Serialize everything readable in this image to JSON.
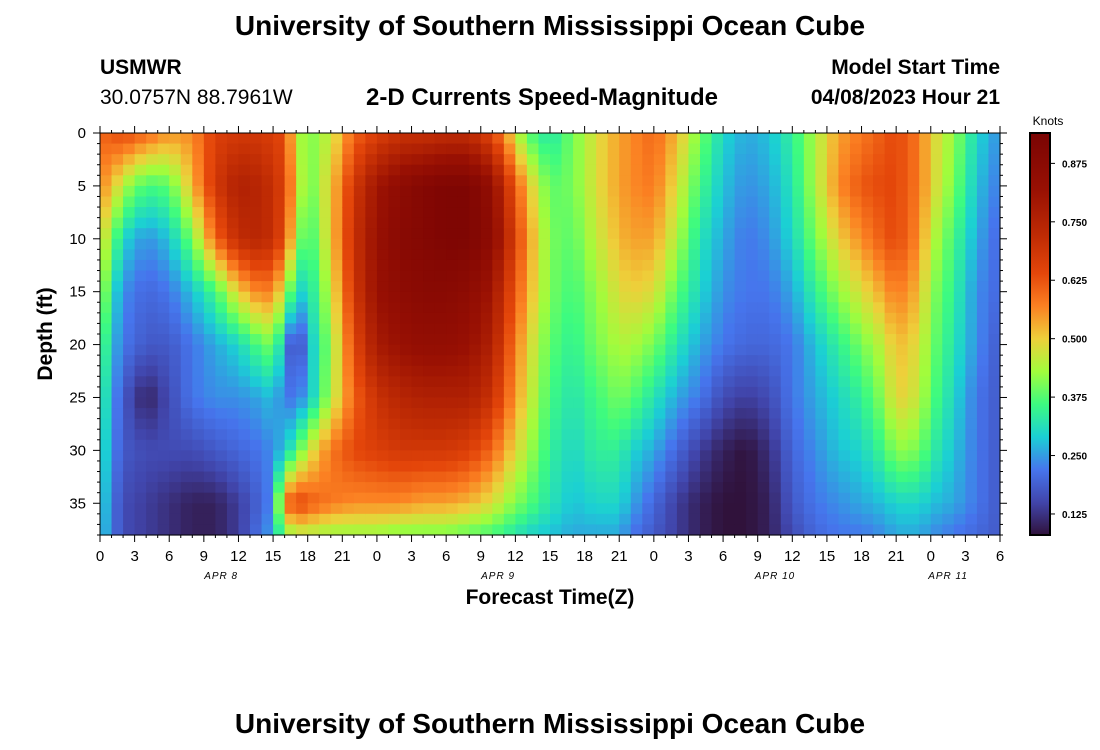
{
  "header": {
    "title": "University of Southern Mississippi Ocean Cube",
    "station_id": "USMWR",
    "coordinates": "30.0757N  88.7961W",
    "subtitle": "2-D Currents Speed-Magnitude",
    "model_label": "Model Start Time",
    "model_time": "04/08/2023 Hour 21"
  },
  "footer": {
    "repeat_title": "University of Southern Mississippi Ocean Cube"
  },
  "chart_data": {
    "type": "heatmap",
    "title": "2-D Currents Speed-Magnitude",
    "xlabel": "Forecast Time(Z)",
    "ylabel": "Depth (ft)",
    "x_hours_range": [
      0,
      78
    ],
    "x_tick_labels": [
      "0",
      "3",
      "6",
      "9",
      "12",
      "15",
      "18",
      "21",
      "0",
      "3",
      "6",
      "9",
      "12",
      "15",
      "18",
      "21",
      "0",
      "3",
      "6",
      "9",
      "12",
      "15",
      "18",
      "21",
      "0",
      "3",
      "6"
    ],
    "date_labels": [
      {
        "text": "APR 8",
        "hour": 10.5
      },
      {
        "text": "APR 9",
        "hour": 34.5
      },
      {
        "text": "APR 10",
        "hour": 58.5
      },
      {
        "text": "APR 11",
        "hour": 73.5
      }
    ],
    "ylim": [
      0,
      38
    ],
    "y_reversed": true,
    "y_ticks": [
      0,
      5,
      10,
      15,
      20,
      25,
      30,
      35
    ],
    "colorbar": {
      "label": "Knots",
      "range": [
        0.08,
        0.94
      ],
      "ticks": [
        "0.125",
        "0.250",
        "0.375",
        "0.500",
        "0.625",
        "0.750",
        "0.875"
      ],
      "tick_values": [
        0.125,
        0.25,
        0.375,
        0.5,
        0.625,
        0.75,
        0.875
      ]
    },
    "colormap_stops": [
      {
        "v": 0.08,
        "color": "#30123b"
      },
      {
        "v": 0.15,
        "color": "#4145ab"
      },
      {
        "v": 0.22,
        "color": "#4675ed"
      },
      {
        "v": 0.29,
        "color": "#1bcfd4"
      },
      {
        "v": 0.36,
        "color": "#3dfb80"
      },
      {
        "v": 0.43,
        "color": "#a2fc3c"
      },
      {
        "v": 0.5,
        "color": "#eecf3a"
      },
      {
        "v": 0.57,
        "color": "#fb8022"
      },
      {
        "v": 0.64,
        "color": "#e4460a"
      },
      {
        "v": 0.72,
        "color": "#bf2b04"
      },
      {
        "v": 0.82,
        "color": "#981003"
      },
      {
        "v": 0.94,
        "color": "#7a0403"
      }
    ],
    "depths_ft": [
      0,
      5,
      10,
      15,
      20,
      25,
      30,
      35,
      38
    ],
    "hours": [
      0,
      1,
      2,
      4,
      6,
      8,
      10,
      12,
      14,
      15,
      16,
      17,
      18,
      20,
      22,
      24,
      26,
      28,
      30,
      32,
      34,
      35,
      37,
      39,
      41,
      43,
      45,
      46,
      48,
      50,
      52,
      54,
      56,
      58,
      60,
      62,
      64,
      66,
      68,
      69,
      71,
      72,
      74,
      76,
      78
    ],
    "speed_knots": [
      [
        0.6,
        0.62,
        0.64,
        0.6,
        0.55,
        0.56,
        0.66,
        0.68,
        0.68,
        0.66,
        0.64,
        0.46,
        0.4,
        0.46,
        0.6,
        0.66,
        0.7,
        0.7,
        0.72,
        0.72,
        0.64,
        0.56,
        0.38,
        0.32,
        0.4,
        0.48,
        0.54,
        0.56,
        0.6,
        0.52,
        0.4,
        0.3,
        0.26,
        0.28,
        0.34,
        0.44,
        0.54,
        0.58,
        0.62,
        0.64,
        0.58,
        0.5,
        0.42,
        0.3,
        0.24
      ],
      [
        0.56,
        0.52,
        0.44,
        0.36,
        0.38,
        0.52,
        0.68,
        0.76,
        0.74,
        0.7,
        0.66,
        0.5,
        0.38,
        0.5,
        0.68,
        0.8,
        0.86,
        0.9,
        0.92,
        0.92,
        0.84,
        0.72,
        0.52,
        0.38,
        0.4,
        0.48,
        0.54,
        0.56,
        0.58,
        0.48,
        0.36,
        0.28,
        0.24,
        0.26,
        0.32,
        0.44,
        0.56,
        0.62,
        0.64,
        0.64,
        0.58,
        0.5,
        0.4,
        0.28,
        0.22
      ],
      [
        0.5,
        0.4,
        0.3,
        0.24,
        0.28,
        0.4,
        0.6,
        0.72,
        0.74,
        0.7,
        0.64,
        0.44,
        0.34,
        0.5,
        0.7,
        0.82,
        0.88,
        0.9,
        0.92,
        0.92,
        0.86,
        0.76,
        0.56,
        0.4,
        0.38,
        0.46,
        0.52,
        0.54,
        0.54,
        0.44,
        0.32,
        0.26,
        0.22,
        0.24,
        0.3,
        0.4,
        0.5,
        0.56,
        0.62,
        0.64,
        0.56,
        0.46,
        0.36,
        0.26,
        0.2
      ],
      [
        0.46,
        0.32,
        0.24,
        0.2,
        0.22,
        0.28,
        0.36,
        0.5,
        0.58,
        0.56,
        0.46,
        0.3,
        0.3,
        0.46,
        0.68,
        0.82,
        0.86,
        0.88,
        0.88,
        0.86,
        0.8,
        0.7,
        0.54,
        0.4,
        0.36,
        0.42,
        0.48,
        0.5,
        0.48,
        0.38,
        0.3,
        0.24,
        0.22,
        0.22,
        0.26,
        0.34,
        0.42,
        0.48,
        0.54,
        0.58,
        0.52,
        0.42,
        0.34,
        0.24,
        0.2
      ],
      [
        0.4,
        0.28,
        0.22,
        0.18,
        0.18,
        0.22,
        0.26,
        0.3,
        0.38,
        0.4,
        0.26,
        0.12,
        0.26,
        0.42,
        0.64,
        0.78,
        0.82,
        0.84,
        0.84,
        0.82,
        0.76,
        0.66,
        0.5,
        0.38,
        0.34,
        0.4,
        0.44,
        0.44,
        0.4,
        0.32,
        0.26,
        0.22,
        0.2,
        0.2,
        0.22,
        0.28,
        0.34,
        0.4,
        0.46,
        0.52,
        0.48,
        0.4,
        0.32,
        0.24,
        0.18
      ],
      [
        0.36,
        0.26,
        0.18,
        0.1,
        0.16,
        0.22,
        0.24,
        0.24,
        0.26,
        0.28,
        0.22,
        0.22,
        0.26,
        0.44,
        0.6,
        0.7,
        0.74,
        0.76,
        0.76,
        0.76,
        0.7,
        0.62,
        0.48,
        0.36,
        0.32,
        0.36,
        0.4,
        0.38,
        0.32,
        0.26,
        0.22,
        0.16,
        0.14,
        0.16,
        0.22,
        0.26,
        0.3,
        0.34,
        0.42,
        0.5,
        0.46,
        0.38,
        0.3,
        0.22,
        0.18
      ],
      [
        0.34,
        0.24,
        0.18,
        0.16,
        0.16,
        0.16,
        0.18,
        0.2,
        0.22,
        0.24,
        0.28,
        0.36,
        0.46,
        0.58,
        0.64,
        0.66,
        0.68,
        0.68,
        0.68,
        0.66,
        0.6,
        0.54,
        0.44,
        0.34,
        0.3,
        0.34,
        0.34,
        0.3,
        0.26,
        0.2,
        0.14,
        0.1,
        0.08,
        0.12,
        0.2,
        0.24,
        0.28,
        0.3,
        0.36,
        0.42,
        0.4,
        0.34,
        0.28,
        0.22,
        0.18
      ],
      [
        0.32,
        0.22,
        0.16,
        0.14,
        0.12,
        0.1,
        0.1,
        0.14,
        0.2,
        0.24,
        0.58,
        0.66,
        0.62,
        0.58,
        0.56,
        0.56,
        0.56,
        0.54,
        0.54,
        0.52,
        0.48,
        0.44,
        0.38,
        0.32,
        0.28,
        0.3,
        0.3,
        0.26,
        0.2,
        0.14,
        0.1,
        0.08,
        0.08,
        0.1,
        0.18,
        0.22,
        0.24,
        0.26,
        0.28,
        0.3,
        0.3,
        0.28,
        0.26,
        0.22,
        0.18
      ],
      [
        0.3,
        0.22,
        0.16,
        0.14,
        0.12,
        0.1,
        0.1,
        0.14,
        0.22,
        0.26,
        0.4,
        0.44,
        0.44,
        0.42,
        0.42,
        0.42,
        0.4,
        0.4,
        0.4,
        0.38,
        0.36,
        0.34,
        0.3,
        0.28,
        0.26,
        0.26,
        0.26,
        0.22,
        0.18,
        0.14,
        0.1,
        0.08,
        0.08,
        0.1,
        0.16,
        0.2,
        0.22,
        0.22,
        0.24,
        0.26,
        0.26,
        0.24,
        0.22,
        0.2,
        0.18
      ]
    ]
  }
}
